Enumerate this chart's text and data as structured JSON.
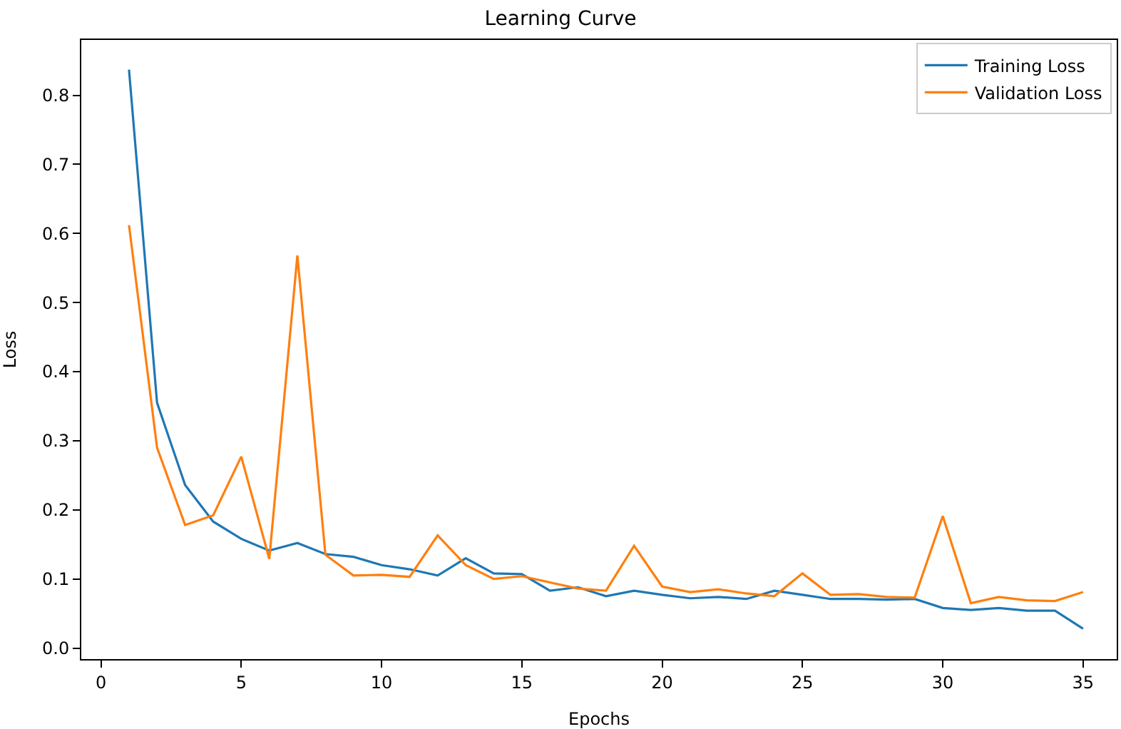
{
  "chart_data": {
    "type": "line",
    "title": "Learning Curve",
    "xlabel": "Epochs",
    "ylabel": "Loss",
    "x": [
      1,
      2,
      3,
      4,
      5,
      6,
      7,
      8,
      9,
      10,
      11,
      12,
      13,
      14,
      15,
      16,
      17,
      18,
      19,
      20,
      21,
      22,
      23,
      24,
      25,
      26,
      27,
      28,
      29,
      30,
      31,
      32,
      33,
      34,
      35
    ],
    "series": [
      {
        "name": "Training Loss",
        "color": "#1f77b4",
        "values": [
          0.837,
          0.355,
          0.236,
          0.183,
          0.158,
          0.141,
          0.152,
          0.136,
          0.132,
          0.12,
          0.114,
          0.105,
          0.13,
          0.108,
          0.107,
          0.083,
          0.088,
          0.075,
          0.083,
          0.077,
          0.072,
          0.074,
          0.071,
          0.083,
          0.077,
          0.071,
          0.071,
          0.07,
          0.071,
          0.058,
          0.055,
          0.058,
          0.054,
          0.054,
          0.028
        ]
      },
      {
        "name": "Validation Loss",
        "color": "#ff7f0e",
        "values": [
          0.612,
          0.29,
          0.178,
          0.192,
          0.277,
          0.129,
          0.568,
          0.135,
          0.105,
          0.106,
          0.103,
          0.163,
          0.12,
          0.1,
          0.104,
          0.095,
          0.086,
          0.083,
          0.148,
          0.089,
          0.081,
          0.085,
          0.079,
          0.075,
          0.108,
          0.077,
          0.078,
          0.074,
          0.073,
          0.191,
          0.065,
          0.074,
          0.069,
          0.068,
          0.081
        ]
      }
    ],
    "xlim": [
      -0.7,
      36.2
    ],
    "xticks": [
      0,
      5,
      10,
      15,
      20,
      25,
      30,
      35
    ],
    "ylim": [
      -0.016,
      0.88
    ],
    "yticks": [
      {
        "value": 0,
        "label": "0.0"
      },
      0.1,
      0.2,
      0.3,
      0.4,
      0.5,
      0.6,
      0.7,
      0.8
    ],
    "legend": "top right",
    "marker": "none",
    "line_style": "solid"
  }
}
